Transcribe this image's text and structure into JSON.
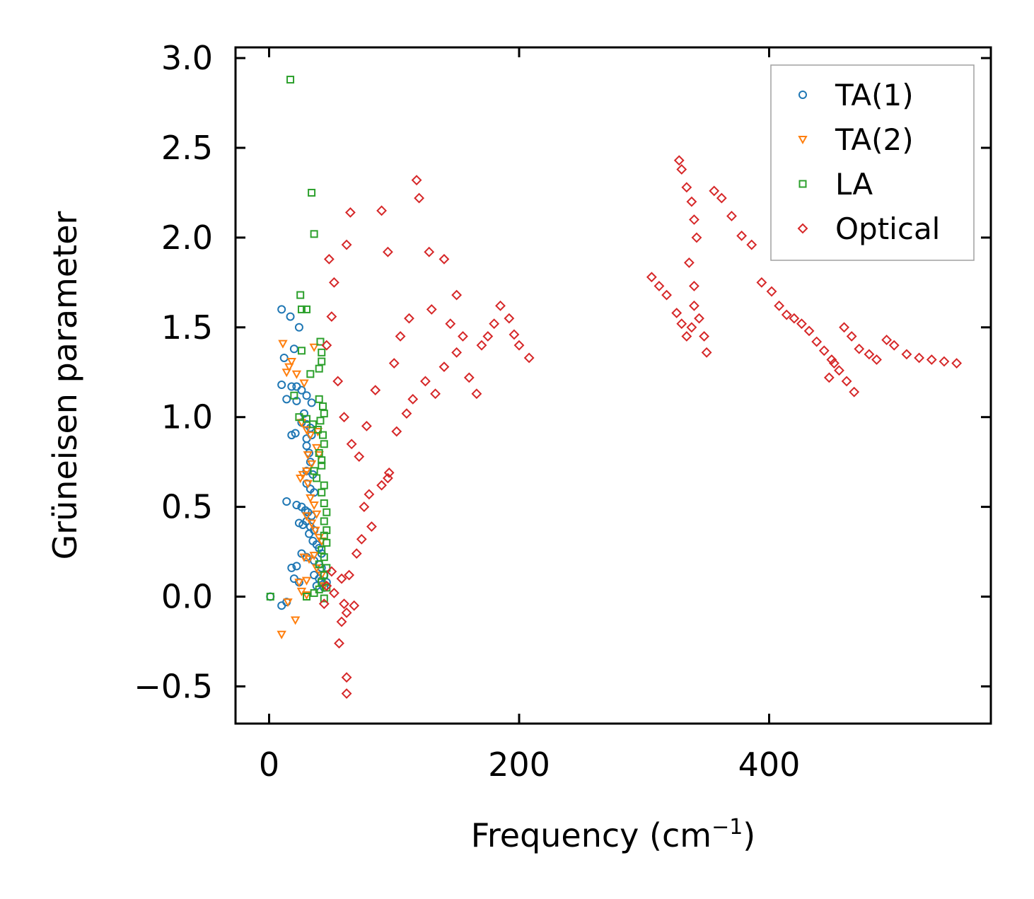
{
  "chart_data": {
    "type": "scatter",
    "title": "",
    "xlabel": "Frequency (cm",
    "xlabel_sup": "−1",
    "xlabel_end": ")",
    "ylabel": "Grüneisen parameter",
    "xlim": [
      -27,
      577
    ],
    "ylim": [
      -0.71,
      3.06
    ],
    "xticks": [
      0,
      200,
      400
    ],
    "xtick_labels": [
      "0",
      "200",
      "400"
    ],
    "yticks": [
      -0.5,
      0.0,
      0.5,
      1.0,
      1.5,
      2.0,
      2.5,
      3.0
    ],
    "ytick_labels": [
      "−0.5",
      "0.0",
      "0.5",
      "1.0",
      "1.5",
      "2.0",
      "2.5",
      "3.0"
    ],
    "grid": false,
    "legend_position": "top-right",
    "series": [
      {
        "name": "TA(1)",
        "marker": "circle",
        "color": "#1f77b4",
        "points": [
          [
            10,
            1.6
          ],
          [
            17,
            1.56
          ],
          [
            20,
            1.38
          ],
          [
            24,
            1.5
          ],
          [
            12,
            1.33
          ],
          [
            10,
            1.18
          ],
          [
            18,
            1.17
          ],
          [
            22,
            1.17
          ],
          [
            14,
            1.1
          ],
          [
            26,
            1.15
          ],
          [
            30,
            1.12
          ],
          [
            34,
            1.08
          ],
          [
            22,
            1.09
          ],
          [
            28,
            1.02
          ],
          [
            26,
            0.97
          ],
          [
            30,
            0.96
          ],
          [
            33,
            0.94
          ],
          [
            18,
            0.9
          ],
          [
            21,
            0.91
          ],
          [
            30,
            0.88
          ],
          [
            34,
            0.9
          ],
          [
            30,
            0.84
          ],
          [
            32,
            0.8
          ],
          [
            33,
            0.75
          ],
          [
            30,
            0.7
          ],
          [
            35,
            0.68
          ],
          [
            30,
            0.63
          ],
          [
            33,
            0.6
          ],
          [
            36,
            0.58
          ],
          [
            14,
            0.53
          ],
          [
            22,
            0.51
          ],
          [
            26,
            0.5
          ],
          [
            29,
            0.48
          ],
          [
            31,
            0.47
          ],
          [
            34,
            0.45
          ],
          [
            24,
            0.41
          ],
          [
            27,
            0.4
          ],
          [
            30,
            0.42
          ],
          [
            33,
            0.39
          ],
          [
            36,
            0.37
          ],
          [
            32,
            0.35
          ],
          [
            35,
            0.31
          ],
          [
            38,
            0.29
          ],
          [
            40,
            0.27
          ],
          [
            42,
            0.24
          ],
          [
            26,
            0.24
          ],
          [
            30,
            0.22
          ],
          [
            36,
            0.2
          ],
          [
            40,
            0.18
          ],
          [
            42,
            0.16
          ],
          [
            22,
            0.17
          ],
          [
            18,
            0.16
          ],
          [
            20,
            0.1
          ],
          [
            24,
            0.08
          ],
          [
            36,
            0.12
          ],
          [
            40,
            0.1
          ],
          [
            42,
            0.09
          ],
          [
            44,
            0.12
          ],
          [
            46,
            0.08
          ],
          [
            38,
            0.06
          ],
          [
            44,
            0.05
          ],
          [
            10,
            -0.05
          ],
          [
            14,
            -0.03
          ],
          [
            1,
            0.0
          ]
        ]
      },
      {
        "name": "TA(2)",
        "marker": "triangle",
        "color": "#ff7f0e",
        "points": [
          [
            11,
            1.41
          ],
          [
            14,
            1.25
          ],
          [
            16,
            1.28
          ],
          [
            18,
            1.31
          ],
          [
            22,
            1.24
          ],
          [
            28,
            1.19
          ],
          [
            36,
            1.39
          ],
          [
            26,
            0.97
          ],
          [
            30,
            0.93
          ],
          [
            33,
            0.9
          ],
          [
            39,
            0.92
          ],
          [
            38,
            0.83
          ],
          [
            40,
            0.79
          ],
          [
            31,
            0.79
          ],
          [
            34,
            0.74
          ],
          [
            30,
            0.7
          ],
          [
            27,
            0.68
          ],
          [
            25,
            0.66
          ],
          [
            31,
            0.63
          ],
          [
            33,
            0.55
          ],
          [
            36,
            0.51
          ],
          [
            38,
            0.46
          ],
          [
            30,
            0.45
          ],
          [
            34,
            0.41
          ],
          [
            37,
            0.37
          ],
          [
            40,
            0.33
          ],
          [
            42,
            0.31
          ],
          [
            36,
            0.23
          ],
          [
            32,
            0.21
          ],
          [
            28,
            0.22
          ],
          [
            38,
            0.16
          ],
          [
            42,
            0.12
          ],
          [
            44,
            0.06
          ],
          [
            30,
            0.09
          ],
          [
            26,
            0.03
          ],
          [
            24,
            0.08
          ],
          [
            10,
            -0.21
          ],
          [
            21,
            -0.13
          ],
          [
            15,
            -0.03
          ],
          [
            30,
            0.01
          ]
        ]
      },
      {
        "name": "LA",
        "marker": "square",
        "color": "#2ca02c",
        "points": [
          [
            17,
            2.88
          ],
          [
            34,
            2.25
          ],
          [
            36,
            2.02
          ],
          [
            25,
            1.68
          ],
          [
            26,
            1.6
          ],
          [
            30,
            1.6
          ],
          [
            26,
            1.37
          ],
          [
            41,
            1.42
          ],
          [
            42,
            1.36
          ],
          [
            42,
            1.31
          ],
          [
            40,
            1.27
          ],
          [
            33,
            1.24
          ],
          [
            20,
            1.12
          ],
          [
            40,
            1.1
          ],
          [
            43,
            1.06
          ],
          [
            44,
            1.02
          ],
          [
            41,
            0.98
          ],
          [
            24,
            1.0
          ],
          [
            30,
            0.99
          ],
          [
            35,
            0.96
          ],
          [
            39,
            0.93
          ],
          [
            43,
            0.9
          ],
          [
            44,
            0.85
          ],
          [
            40,
            0.8
          ],
          [
            42,
            0.76
          ],
          [
            42,
            0.73
          ],
          [
            36,
            0.7
          ],
          [
            38,
            0.66
          ],
          [
            44,
            0.62
          ],
          [
            42,
            0.58
          ],
          [
            44,
            0.52
          ],
          [
            46,
            0.47
          ],
          [
            44,
            0.42
          ],
          [
            46,
            0.37
          ],
          [
            44,
            0.34
          ],
          [
            46,
            0.3
          ],
          [
            42,
            0.26
          ],
          [
            44,
            0.22
          ],
          [
            40,
            0.18
          ],
          [
            46,
            0.16
          ],
          [
            44,
            0.12
          ],
          [
            42,
            0.08
          ],
          [
            46,
            0.05
          ],
          [
            40,
            0.04
          ],
          [
            36,
            0.02
          ],
          [
            30,
            0.0
          ],
          [
            44,
            -0.01
          ],
          [
            1,
            0.0
          ]
        ]
      },
      {
        "name": "Optical",
        "marker": "diamond",
        "color": "#d62728",
        "points": [
          [
            62,
            -0.54
          ],
          [
            62,
            -0.45
          ],
          [
            56,
            -0.26
          ],
          [
            58,
            -0.14
          ],
          [
            62,
            -0.09
          ],
          [
            68,
            -0.05
          ],
          [
            60,
            -0.04
          ],
          [
            44,
            -0.04
          ],
          [
            46,
            0.06
          ],
          [
            52,
            0.02
          ],
          [
            50,
            0.14
          ],
          [
            58,
            0.1
          ],
          [
            64,
            0.12
          ],
          [
            70,
            0.24
          ],
          [
            74,
            0.32
          ],
          [
            82,
            0.39
          ],
          [
            76,
            0.5
          ],
          [
            80,
            0.57
          ],
          [
            90,
            0.62
          ],
          [
            96,
            0.69
          ],
          [
            95,
            0.66
          ],
          [
            102,
            0.92
          ],
          [
            110,
            1.02
          ],
          [
            115,
            1.1
          ],
          [
            125,
            1.2
          ],
          [
            133,
            1.13
          ],
          [
            140,
            1.28
          ],
          [
            150,
            1.36
          ],
          [
            160,
            1.22
          ],
          [
            166,
            1.13
          ],
          [
            175,
            1.45
          ],
          [
            185,
            1.62
          ],
          [
            196,
            1.46
          ],
          [
            208,
            1.33
          ],
          [
            46,
            1.4
          ],
          [
            50,
            1.56
          ],
          [
            48,
            1.88
          ],
          [
            52,
            1.75
          ],
          [
            62,
            1.96
          ],
          [
            65,
            2.14
          ],
          [
            90,
            2.15
          ],
          [
            95,
            1.92
          ],
          [
            118,
            2.32
          ],
          [
            120,
            2.22
          ],
          [
            128,
            1.92
          ],
          [
            140,
            1.88
          ],
          [
            150,
            1.68
          ],
          [
            55,
            1.2
          ],
          [
            60,
            1.0
          ],
          [
            66,
            0.85
          ],
          [
            72,
            0.78
          ],
          [
            78,
            0.95
          ],
          [
            85,
            1.15
          ],
          [
            100,
            1.3
          ],
          [
            105,
            1.45
          ],
          [
            112,
            1.55
          ],
          [
            130,
            1.6
          ],
          [
            145,
            1.52
          ],
          [
            155,
            1.45
          ],
          [
            170,
            1.4
          ],
          [
            180,
            1.52
          ],
          [
            192,
            1.55
          ],
          [
            200,
            1.4
          ],
          [
            306,
            1.78
          ],
          [
            312,
            1.73
          ],
          [
            318,
            1.68
          ],
          [
            326,
            1.58
          ],
          [
            330,
            1.52
          ],
          [
            334,
            1.45
          ],
          [
            338,
            1.5
          ],
          [
            340,
            1.62
          ],
          [
            344,
            1.55
          ],
          [
            348,
            1.45
          ],
          [
            350,
            1.36
          ],
          [
            328,
            2.43
          ],
          [
            330,
            2.38
          ],
          [
            334,
            2.28
          ],
          [
            338,
            2.2
          ],
          [
            340,
            2.1
          ],
          [
            342,
            2.0
          ],
          [
            336,
            1.86
          ],
          [
            340,
            1.73
          ],
          [
            356,
            2.26
          ],
          [
            362,
            2.22
          ],
          [
            370,
            2.12
          ],
          [
            378,
            2.01
          ],
          [
            386,
            1.96
          ],
          [
            394,
            1.75
          ],
          [
            402,
            1.7
          ],
          [
            408,
            1.62
          ],
          [
            414,
            1.57
          ],
          [
            420,
            1.55
          ],
          [
            426,
            1.52
          ],
          [
            432,
            1.48
          ],
          [
            438,
            1.42
          ],
          [
            444,
            1.37
          ],
          [
            450,
            1.32
          ],
          [
            456,
            1.26
          ],
          [
            462,
            1.2
          ],
          [
            468,
            1.14
          ],
          [
            448,
            1.22
          ],
          [
            452,
            1.3
          ],
          [
            460,
            1.5
          ],
          [
            466,
            1.45
          ],
          [
            472,
            1.38
          ],
          [
            480,
            1.35
          ],
          [
            486,
            1.32
          ],
          [
            494,
            1.43
          ],
          [
            500,
            1.4
          ],
          [
            510,
            1.35
          ],
          [
            520,
            1.33
          ],
          [
            530,
            1.32
          ],
          [
            540,
            1.31
          ],
          [
            550,
            1.3
          ]
        ]
      }
    ]
  }
}
